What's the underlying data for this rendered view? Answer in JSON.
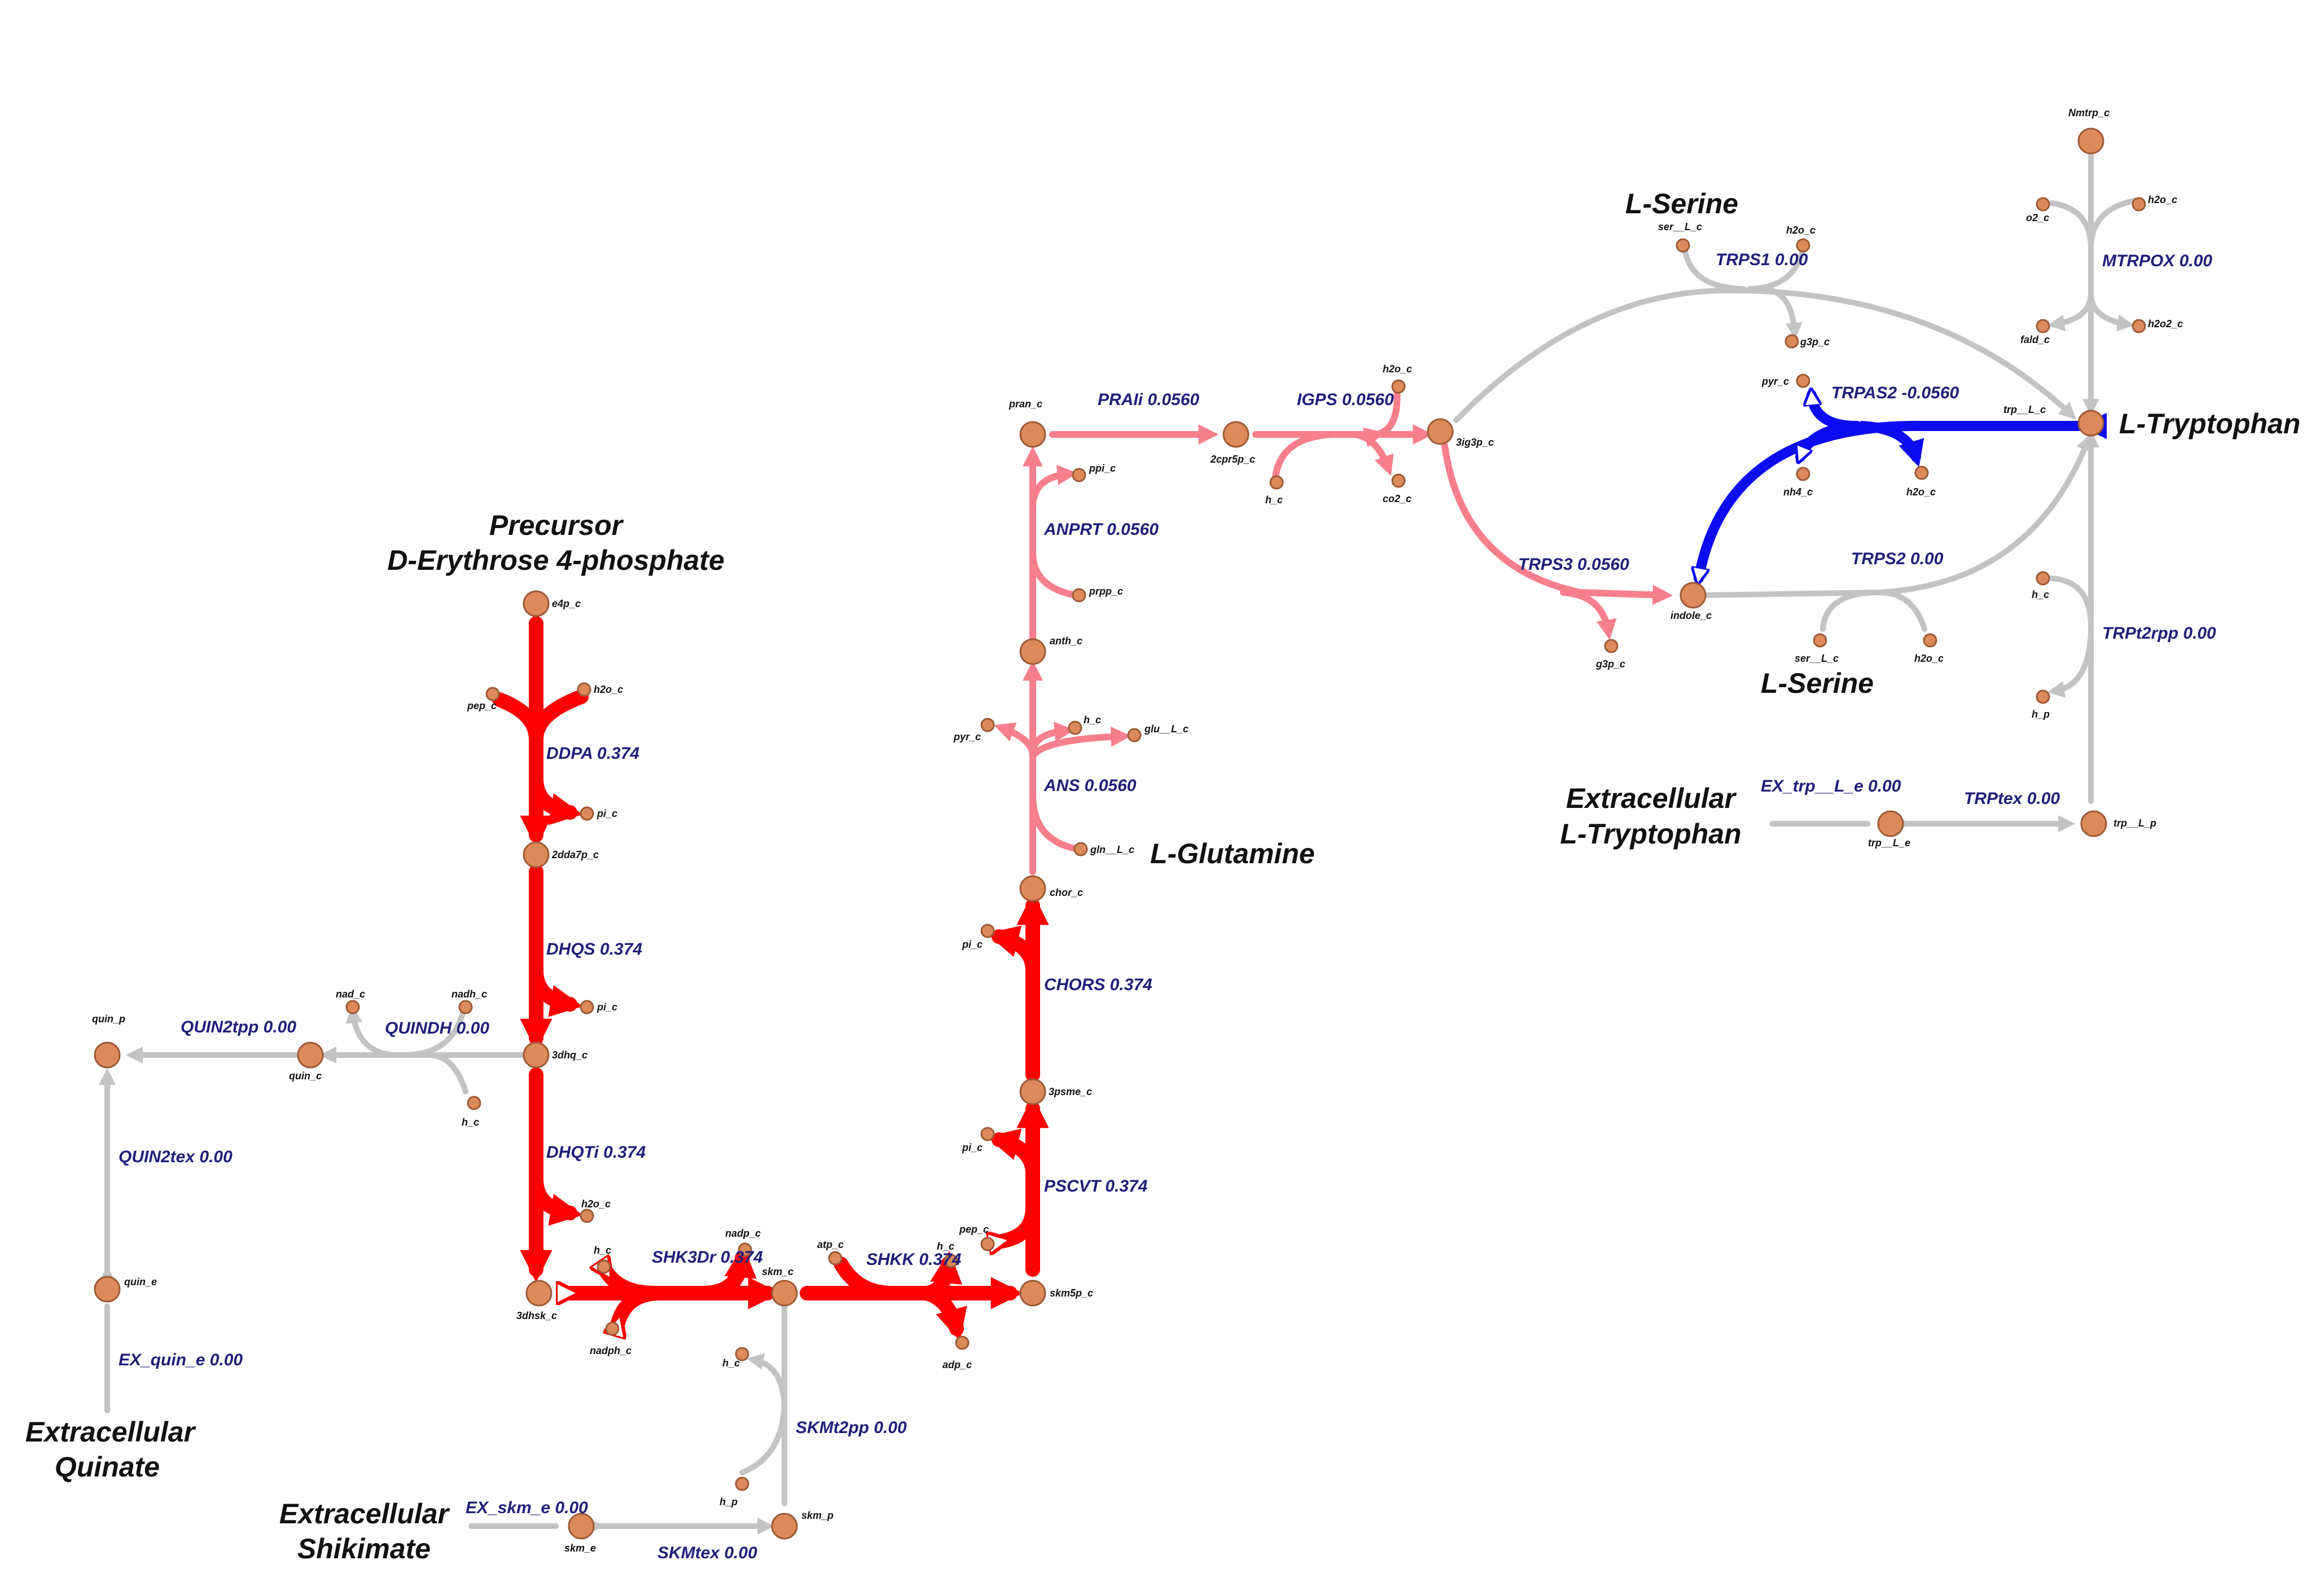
{
  "colors": {
    "high_flux": "#ff0000",
    "medium_flux": "#f77f8d",
    "negative_flux": "#0c0cf0",
    "zero_flux": "#c3c3c3",
    "metabolite": "#dd8a5a",
    "reaction_label": "#1f1f7a"
  },
  "annotations": {
    "precursor_line1": "Precursor",
    "precursor_line2": "D-Erythrose 4-phosphate",
    "l_serine_top": "L-Serine",
    "l_serine_bottom": "L-Serine",
    "l_tryptophan": "L-Tryptophan",
    "l_glutamine": "L-Glutamine",
    "extra_trp_line1": "Extracellular",
    "extra_trp_line2": "L-Tryptophan",
    "extra_quinate_line1": "Extracellular",
    "extra_quinate_line2": "Quinate",
    "extra_shikimate_line1": "Extracellular",
    "extra_shikimate_line2": "Shikimate"
  },
  "reactions": {
    "DDPA": "DDPA 0.374",
    "DHQS": "DHQS 0.374",
    "DHQTi": "DHQTi 0.374",
    "SHK3Dr": "SHK3Dr 0.374",
    "SHKK": "SHKK 0.374",
    "PSCVT": "PSCVT 0.374",
    "CHORS": "CHORS 0.374",
    "ANS": "ANS 0.0560",
    "ANPRT": "ANPRT 0.0560",
    "PRAIi": "PRAIi 0.0560",
    "IGPS": "IGPS 0.0560",
    "TRPS3": "TRPS3 0.0560",
    "TRPS1": "TRPS1 0.00",
    "TRPS2": "TRPS2 0.00",
    "TRPAS2": "TRPAS2 -0.0560",
    "MTRPOX": "MTRPOX 0.00",
    "TRPt2rpp": "TRPt2rpp 0.00",
    "TRPtex": "TRPtex 0.00",
    "EX_trp": "EX_trp__L_e 0.00",
    "QUINDH": "QUINDH 0.00",
    "QUIN2tpp": "QUIN2tpp 0.00",
    "QUIN2tex": "QUIN2tex 0.00",
    "EX_quin": "EX_quin_e 0.00",
    "SKMt2pp": "SKMt2pp 0.00",
    "EX_skm": "EX_skm_e 0.00",
    "SKMtex": "SKMtex 0.00"
  },
  "metabolites": {
    "e4p_c": "e4p_c",
    "pep_c_ddpa": "pep_c",
    "h2o_c_ddpa": "h2o_c",
    "pi_c_ddpa": "pi_c",
    "2dda7p_c": "2dda7p_c",
    "pi_c_dhqs": "pi_c",
    "3dhq_c": "3dhq_c",
    "h2o_c_dhqt": "h2o_c",
    "3dhsk_c": "3dhsk_c",
    "h_c_shk3d": "h_c",
    "nadph_c": "nadph_c",
    "nadp_c": "nadp_c",
    "skm_c": "skm_c",
    "atp_c": "atp_c",
    "h_c_shkk": "h_c",
    "adp_c": "adp_c",
    "skm5p_c": "skm5p_c",
    "pep_c_pscvt": "pep_c",
    "pi_c_pscvt": "pi_c",
    "3psme_c": "3psme_c",
    "pi_c_chors": "pi_c",
    "chor_c": "chor_c",
    "gln__L_c": "gln__L_c",
    "pyr_c_ans": "pyr_c",
    "h_c_ans": "h_c",
    "glu__L_c": "glu__L_c",
    "anth_c": "anth_c",
    "prpp_c": "prpp_c",
    "ppi_c": "ppi_c",
    "pran_c": "pran_c",
    "2cpr5p_c": "2cpr5p_c",
    "h_c_igps": "h_c",
    "h2o_c_igps": "h2o_c",
    "co2_c": "co2_c",
    "3ig3p_c": "3ig3p_c",
    "g3p_c_trps3": "g3p_c",
    "indole_c": "indole_c",
    "ser__L_c_trps2": "ser__L_c",
    "h2o_c_trps2": "h2o_c",
    "ser__L_c_trps1": "ser__L_c",
    "h2o_c_trps1": "h2o_c",
    "g3p_c_trps1": "g3p_c",
    "pyr_c_trpas2": "pyr_c",
    "nh4_c": "nh4_c",
    "h2o_c_trpas2": "h2o_c",
    "trp__L_c": "trp__L_c",
    "Nmtrp_c": "Nmtrp_c",
    "o2_c": "o2_c",
    "h2o_c_mtrpox": "h2o_c",
    "fald_c": "fald_c",
    "h2o2_c": "h2o2_c",
    "h_c_trpt2": "h_c",
    "h_p_trpt2": "h_p",
    "trp__L_p": "trp__L_p",
    "trp__L_e": "trp__L_e",
    "nad_c": "nad_c",
    "nadh_c": "nadh_c",
    "h_c_quindh": "h_c",
    "quin_c": "quin_c",
    "quin_p": "quin_p",
    "quin_e": "quin_e",
    "h_c_skmt2": "h_c",
    "h_p_skmt2": "h_p",
    "skm_p": "skm_p",
    "skm_e": "skm_e"
  }
}
